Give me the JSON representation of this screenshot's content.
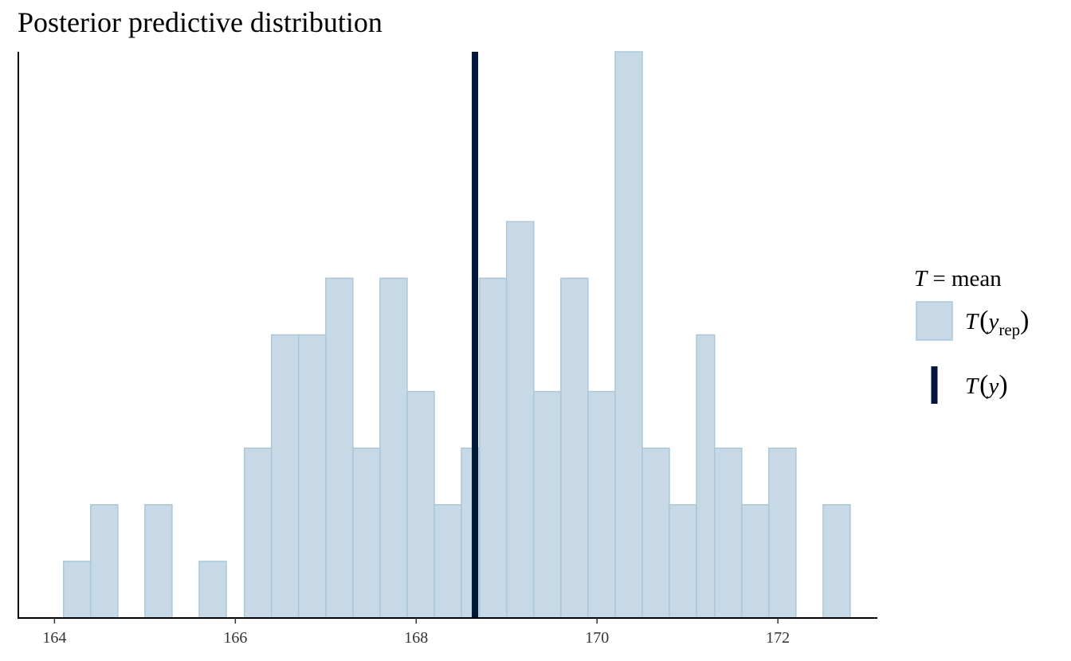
{
  "chart_data": {
    "type": "histogram",
    "title": "Posterior predictive distribution",
    "xlabel": "",
    "ylabel": "",
    "bins": [
      {
        "x0": 164.1,
        "x1": 164.4,
        "count": 1
      },
      {
        "x0": 164.4,
        "x1": 164.7,
        "count": 2
      },
      {
        "x0": 164.7,
        "x1": 165.0,
        "count": 0
      },
      {
        "x0": 165.0,
        "x1": 165.3,
        "count": 2
      },
      {
        "x0": 165.3,
        "x1": 165.6,
        "count": 0
      },
      {
        "x0": 165.6,
        "x1": 165.9,
        "count": 1
      },
      {
        "x0": 165.9,
        "x1": 166.1,
        "count": 0
      },
      {
        "x0": 166.1,
        "x1": 166.4,
        "count": 3
      },
      {
        "x0": 166.4,
        "x1": 166.7,
        "count": 5
      },
      {
        "x0": 166.7,
        "x1": 167.0,
        "count": 5
      },
      {
        "x0": 167.0,
        "x1": 167.3,
        "count": 6
      },
      {
        "x0": 167.3,
        "x1": 167.6,
        "count": 3
      },
      {
        "x0": 167.6,
        "x1": 167.9,
        "count": 6
      },
      {
        "x0": 167.9,
        "x1": 168.2,
        "count": 4
      },
      {
        "x0": 168.2,
        "x1": 168.5,
        "count": 2
      },
      {
        "x0": 168.5,
        "x1": 168.7,
        "count": 3
      },
      {
        "x0": 168.7,
        "x1": 169.0,
        "count": 6
      },
      {
        "x0": 169.0,
        "x1": 169.3,
        "count": 7
      },
      {
        "x0": 169.3,
        "x1": 169.6,
        "count": 4
      },
      {
        "x0": 169.6,
        "x1": 169.9,
        "count": 6
      },
      {
        "x0": 169.9,
        "x1": 170.2,
        "count": 4
      },
      {
        "x0": 170.2,
        "x1": 170.5,
        "count": 10
      },
      {
        "x0": 170.5,
        "x1": 170.8,
        "count": 3
      },
      {
        "x0": 170.8,
        "x1": 171.1,
        "count": 2
      },
      {
        "x0": 171.1,
        "x1": 171.3,
        "count": 5
      },
      {
        "x0": 171.3,
        "x1": 171.6,
        "count": 3
      },
      {
        "x0": 171.6,
        "x1": 171.9,
        "count": 2
      },
      {
        "x0": 171.9,
        "x1": 172.2,
        "count": 3
      },
      {
        "x0": 172.2,
        "x1": 172.5,
        "count": 0
      },
      {
        "x0": 172.5,
        "x1": 172.8,
        "count": 2
      }
    ],
    "observed_stat": 168.65,
    "x_ticks": [
      164,
      166,
      168,
      170,
      172
    ],
    "xlim": [
      163.6,
      173.1
    ],
    "ylim": [
      0,
      10
    ],
    "y_axis_ticks_shown": false,
    "grid": false,
    "legend": {
      "placement": "right",
      "title_symbol": "T",
      "title_text": " = mean",
      "items": [
        {
          "kind": "bar",
          "symbol": "T",
          "open": "(",
          "var": "y",
          "sub": "rep",
          "close": ")"
        },
        {
          "kind": "line",
          "symbol": "T",
          "open": "(",
          "var": "y",
          "sub": "",
          "close": ")"
        }
      ]
    },
    "colors": {
      "bar_fill": "#c7d9e6",
      "bar_stroke": "#a9c8da",
      "observed_line": "#011638",
      "axis": "#000000"
    }
  }
}
